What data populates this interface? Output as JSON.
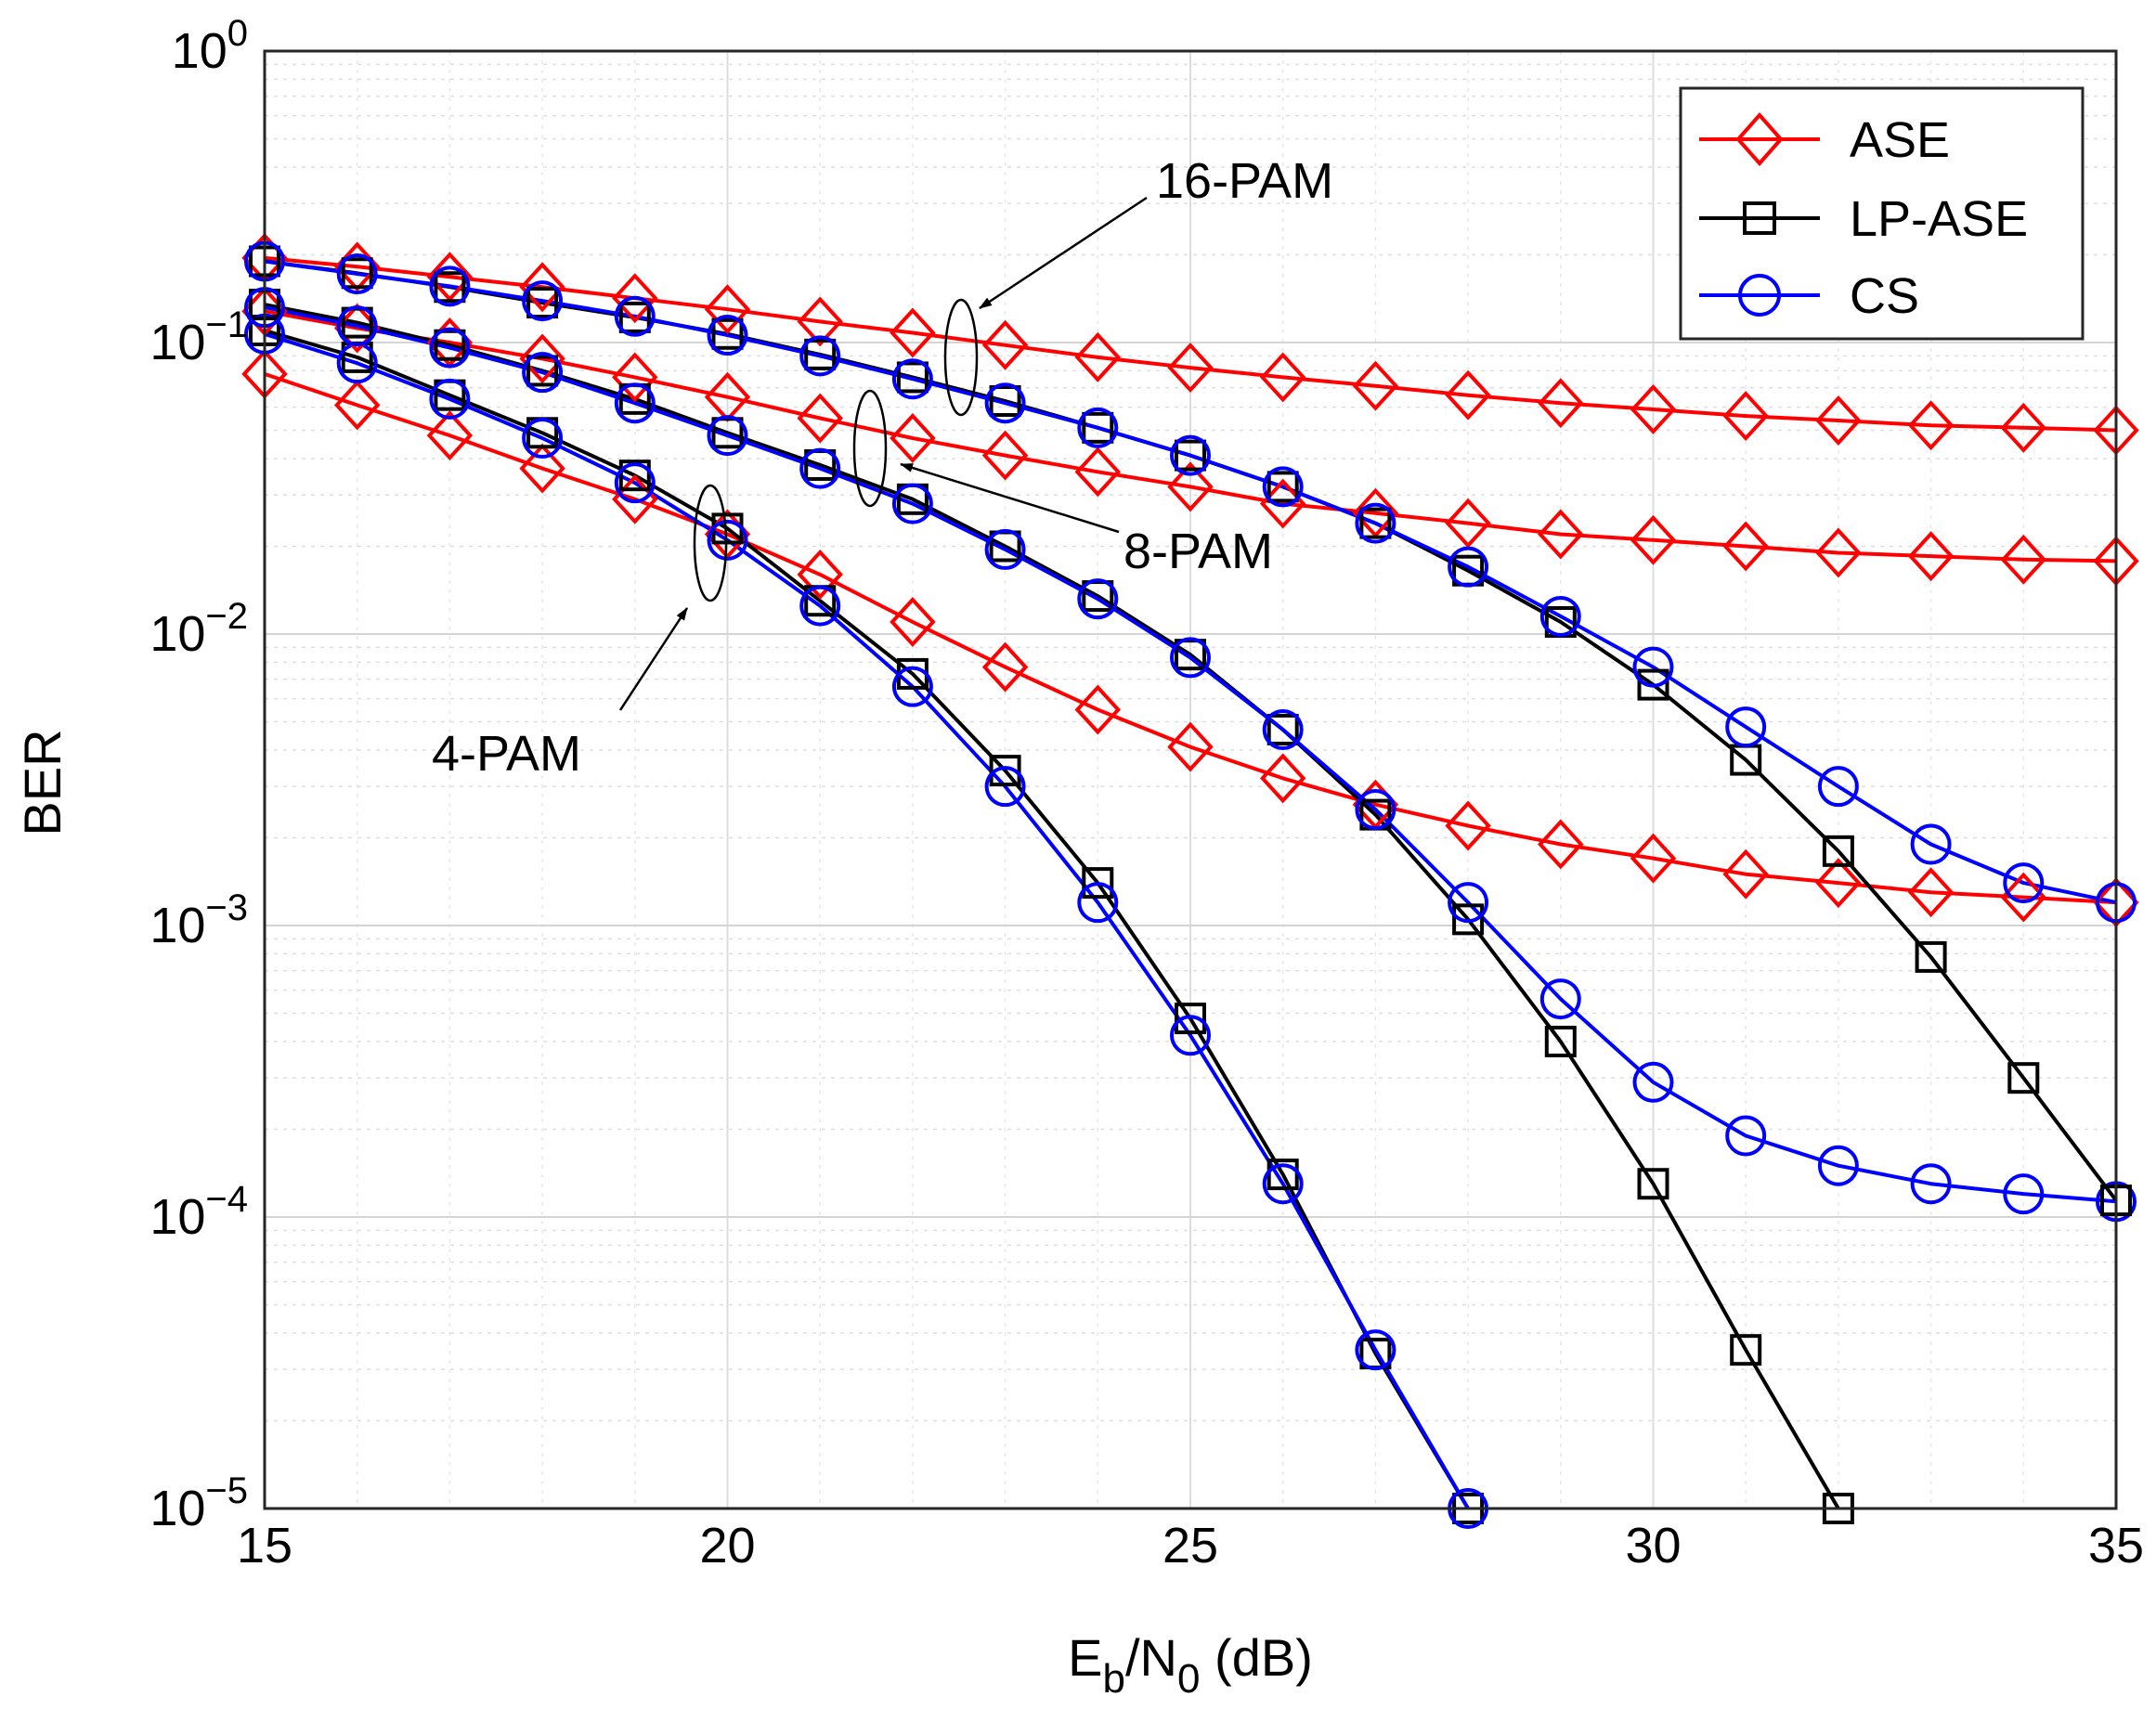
{
  "chart_data": {
    "type": "line",
    "yscale": "log",
    "xlim": [
      15,
      35
    ],
    "ylim": [
      1e-05,
      1
    ],
    "xticks": [
      "15",
      "20",
      "25",
      "30",
      "35"
    ],
    "yticks": [
      {
        "base": "10",
        "exp": "0"
      },
      {
        "base": "10",
        "exp": "−1"
      },
      {
        "base": "10",
        "exp": "−2"
      },
      {
        "base": "10",
        "exp": "−3"
      },
      {
        "base": "10",
        "exp": "−4"
      },
      {
        "base": "10",
        "exp": "−5"
      }
    ],
    "xlabel": {
      "E": "E",
      "b": "b",
      "slashN": "/N",
      "zero": "0",
      "unit": " (dB)"
    },
    "ylabel": "BER",
    "grid": true,
    "legend_position": "top-right",
    "legend": [
      {
        "label": "ASE",
        "color": "#ff0000",
        "marker": "diamond"
      },
      {
        "label": "LP-ASE",
        "color": "#000000",
        "marker": "square"
      },
      {
        "label": "CS",
        "color": "#0000ff",
        "marker": "circle"
      }
    ],
    "annotations": [
      {
        "text": "16-PAM"
      },
      {
        "text": "8-PAM"
      },
      {
        "text": "4-PAM"
      }
    ],
    "series": [
      {
        "name": "ASE 4-PAM",
        "scheme": "ASE",
        "color": "#ff0000",
        "marker": "diamond",
        "x": [
          15,
          16,
          17,
          18,
          19,
          20,
          21,
          22,
          23,
          24,
          25,
          26,
          27,
          28,
          29,
          30,
          31,
          32,
          33,
          34,
          35
        ],
        "y": [
          0.078,
          0.061,
          0.048,
          0.037,
          0.029,
          0.022,
          0.016,
          0.011,
          0.0077,
          0.0055,
          0.0041,
          0.0032,
          0.0026,
          0.0022,
          0.0019,
          0.0017,
          0.0015,
          0.0014,
          0.0013,
          0.00125,
          0.0012
        ]
      },
      {
        "name": "LP-ASE 4-PAM",
        "scheme": "LP-ASE",
        "color": "#000000",
        "marker": "square",
        "x": [
          15,
          16,
          17,
          18,
          19,
          20,
          21,
          22,
          23,
          24,
          25,
          26,
          27,
          28
        ],
        "y": [
          0.11,
          0.089,
          0.066,
          0.049,
          0.035,
          0.023,
          0.013,
          0.0073,
          0.0034,
          0.0014,
          0.00048,
          0.00014,
          3.4e-05,
          1e-05
        ]
      },
      {
        "name": "CS 4-PAM",
        "scheme": "CS",
        "color": "#0000ff",
        "marker": "circle",
        "x": [
          15,
          16,
          17,
          18,
          19,
          20,
          21,
          22,
          23,
          24,
          25,
          26,
          27,
          28
        ],
        "y": [
          0.107,
          0.085,
          0.064,
          0.047,
          0.033,
          0.021,
          0.0125,
          0.0066,
          0.003,
          0.0012,
          0.00042,
          0.00013,
          3.5e-05,
          1e-05
        ]
      },
      {
        "name": "ASE 8-PAM",
        "scheme": "ASE",
        "color": "#ff0000",
        "marker": "diamond",
        "x": [
          15,
          16,
          17,
          18,
          19,
          20,
          21,
          22,
          23,
          24,
          25,
          26,
          27,
          28,
          29,
          30,
          31,
          32,
          33,
          34,
          35
        ],
        "y": [
          0.128,
          0.112,
          0.1,
          0.088,
          0.076,
          0.065,
          0.055,
          0.047,
          0.041,
          0.036,
          0.032,
          0.028,
          0.026,
          0.024,
          0.022,
          0.021,
          0.02,
          0.019,
          0.0185,
          0.018,
          0.0178
        ]
      },
      {
        "name": "LP-ASE 8-PAM",
        "scheme": "LP-ASE",
        "color": "#000000",
        "marker": "square",
        "x": [
          15,
          16,
          17,
          18,
          19,
          20,
          21,
          22,
          23,
          24,
          25,
          26,
          27,
          28,
          29,
          30,
          31,
          32,
          33,
          34,
          35
        ],
        "y": [
          0.135,
          0.117,
          0.098,
          0.08,
          0.064,
          0.049,
          0.038,
          0.029,
          0.02,
          0.0135,
          0.0085,
          0.0047,
          0.0024,
          0.00105,
          0.0004,
          0.00013,
          3.5e-05,
          1e-05,
          null,
          null,
          null
        ]
      },
      {
        "name": "CS 8-PAM",
        "scheme": "CS",
        "color": "#0000ff",
        "marker": "circle",
        "x": [
          15,
          16,
          17,
          18,
          19,
          20,
          21,
          22,
          23,
          24,
          25,
          26,
          27,
          28,
          29,
          30,
          31,
          32,
          33,
          34,
          35
        ],
        "y": [
          0.132,
          0.114,
          0.096,
          0.079,
          0.062,
          0.048,
          0.037,
          0.028,
          0.0195,
          0.0132,
          0.0083,
          0.0047,
          0.0025,
          0.0012,
          0.00056,
          0.00029,
          0.00019,
          0.00015,
          0.00013,
          0.00012,
          0.000113
        ]
      },
      {
        "name": "ASE 16-PAM",
        "scheme": "ASE",
        "color": "#ff0000",
        "marker": "diamond",
        "x": [
          15,
          16,
          17,
          18,
          19,
          20,
          21,
          22,
          23,
          24,
          25,
          26,
          27,
          28,
          29,
          30,
          31,
          32,
          33,
          34,
          35
        ],
        "y": [
          0.195,
          0.182,
          0.168,
          0.155,
          0.142,
          0.13,
          0.118,
          0.108,
          0.098,
          0.089,
          0.082,
          0.076,
          0.071,
          0.066,
          0.062,
          0.059,
          0.056,
          0.054,
          0.052,
          0.051,
          0.05
        ]
      },
      {
        "name": "LP-ASE 16-PAM",
        "scheme": "LP-ASE",
        "color": "#000000",
        "marker": "square",
        "x": [
          15,
          16,
          17,
          18,
          19,
          20,
          21,
          22,
          23,
          24,
          25,
          26,
          27,
          28,
          29,
          30,
          31,
          32,
          33,
          34,
          35
        ],
        "y": [
          0.19,
          0.173,
          0.155,
          0.137,
          0.122,
          0.107,
          0.091,
          0.076,
          0.063,
          0.051,
          0.041,
          0.032,
          0.024,
          0.0165,
          0.011,
          0.0067,
          0.0037,
          0.0018,
          0.00078,
          0.0003,
          0.000114
        ]
      },
      {
        "name": "CS 16-PAM",
        "scheme": "CS",
        "color": "#0000ff",
        "marker": "circle",
        "x": [
          15,
          16,
          17,
          18,
          19,
          20,
          21,
          22,
          23,
          24,
          25,
          26,
          27,
          28,
          29,
          30,
          31,
          32,
          33,
          34,
          35
        ],
        "y": [
          0.19,
          0.172,
          0.156,
          0.139,
          0.123,
          0.106,
          0.09,
          0.075,
          0.062,
          0.051,
          0.041,
          0.032,
          0.024,
          0.017,
          0.0115,
          0.0077,
          0.0048,
          0.003,
          0.0019,
          0.0014,
          0.0012
        ]
      }
    ]
  }
}
